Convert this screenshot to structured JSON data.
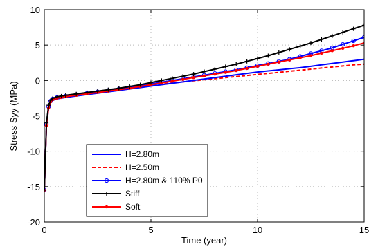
{
  "chart_data": {
    "type": "line",
    "title": "",
    "xlabel": "Time (year)",
    "ylabel": "Stress Syy (MPa)",
    "xlim": [
      0,
      15
    ],
    "ylim": [
      -20,
      10
    ],
    "xticks": [
      "0",
      "5",
      "10",
      "15"
    ],
    "yticks": [
      "10",
      "5",
      "0",
      "-5",
      "-10",
      "-15",
      "-20"
    ],
    "grid": true,
    "legend_position": "lower-center",
    "x": [
      0,
      0.1,
      0.2,
      0.3,
      0.4,
      0.6,
      0.8,
      1,
      1.5,
      2,
      2.5,
      3,
      3.5,
      4,
      4.5,
      5,
      5.5,
      6,
      6.5,
      7,
      7.5,
      8,
      8.5,
      9,
      9.5,
      10,
      10.5,
      11,
      11.5,
      12,
      12.5,
      13,
      13.5,
      14,
      14.5,
      15
    ],
    "series": [
      {
        "name": "H=2.80m",
        "color": "#0000ff",
        "dash": "solid",
        "marker": "none",
        "values": [
          -15.5,
          -6.4,
          -3.9,
          -3.1,
          -2.8,
          -2.6,
          -2.5,
          -2.4,
          -2.2,
          -2.0,
          -1.8,
          -1.6,
          -1.4,
          -1.2,
          -1.0,
          -0.8,
          -0.6,
          -0.4,
          -0.2,
          0.0,
          0.2,
          0.4,
          0.6,
          0.8,
          1.0,
          1.2,
          1.35,
          1.5,
          1.65,
          1.8,
          2.0,
          2.2,
          2.4,
          2.6,
          2.8,
          3.0
        ]
      },
      {
        "name": "H=2.50m",
        "color": "#ff0000",
        "dash": "dashed",
        "marker": "none",
        "values": [
          -15.5,
          -6.3,
          -3.8,
          -3.0,
          -2.7,
          -2.5,
          -2.4,
          -2.3,
          -2.1,
          -1.9,
          -1.7,
          -1.5,
          -1.3,
          -1.1,
          -0.9,
          -0.7,
          -0.5,
          -0.35,
          -0.2,
          -0.05,
          0.1,
          0.25,
          0.4,
          0.55,
          0.7,
          0.85,
          1.0,
          1.15,
          1.3,
          1.45,
          1.6,
          1.75,
          1.9,
          2.05,
          2.2,
          2.3
        ]
      },
      {
        "name": "H=2.80m & 110% P0",
        "color": "#0000ff",
        "dash": "solid",
        "marker": "circle",
        "values": [
          -15.5,
          -6.2,
          -3.7,
          -2.9,
          -2.6,
          -2.4,
          -2.3,
          -2.2,
          -2.0,
          -1.8,
          -1.6,
          -1.4,
          -1.2,
          -1.0,
          -0.75,
          -0.5,
          -0.25,
          0.0,
          0.25,
          0.5,
          0.75,
          1.0,
          1.25,
          1.5,
          1.8,
          2.1,
          2.4,
          2.7,
          3.0,
          3.4,
          3.8,
          4.2,
          4.6,
          5.1,
          5.6,
          6.1
        ]
      },
      {
        "name": "Stiff",
        "color": "#000000",
        "dash": "solid",
        "marker": "plus",
        "values": [
          -15.5,
          -6.0,
          -3.5,
          -2.8,
          -2.5,
          -2.3,
          -2.2,
          -2.1,
          -1.9,
          -1.7,
          -1.5,
          -1.3,
          -1.1,
          -0.85,
          -0.6,
          -0.3,
          0.0,
          0.3,
          0.6,
          0.9,
          1.25,
          1.6,
          1.95,
          2.3,
          2.7,
          3.1,
          3.5,
          3.95,
          4.4,
          4.85,
          5.3,
          5.8,
          6.3,
          6.8,
          7.3,
          7.8
        ]
      },
      {
        "name": "Soft",
        "color": "#ff0000",
        "dash": "solid",
        "marker": "dot",
        "values": [
          -15.5,
          -6.4,
          -3.9,
          -3.0,
          -2.7,
          -2.5,
          -2.4,
          -2.3,
          -2.1,
          -1.9,
          -1.7,
          -1.5,
          -1.3,
          -1.1,
          -0.85,
          -0.6,
          -0.35,
          -0.1,
          0.15,
          0.4,
          0.65,
          0.9,
          1.15,
          1.4,
          1.7,
          2.0,
          2.3,
          2.6,
          2.9,
          3.2,
          3.5,
          3.85,
          4.2,
          4.55,
          4.9,
          5.3
        ]
      }
    ]
  }
}
